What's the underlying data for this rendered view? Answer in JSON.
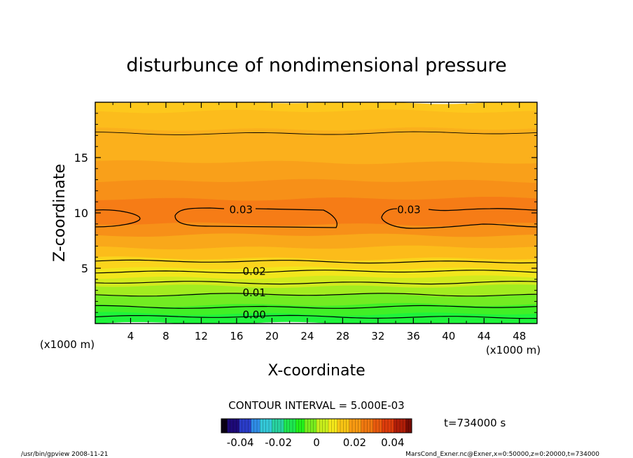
{
  "chart_data": {
    "type": "heatmap",
    "title": "disturbunce of nondimensional pressure",
    "xlabel": "X-coordinate",
    "ylabel": "Z-coordinate",
    "x_unit_left": "(x1000 m)",
    "x_unit_right": "(x1000 m)",
    "xlim": [
      0,
      50
    ],
    "ylim": [
      0,
      20
    ],
    "xticks": [
      4,
      8,
      12,
      16,
      20,
      24,
      28,
      32,
      36,
      40,
      44,
      48
    ],
    "yticks": [
      5,
      10,
      15
    ],
    "grid": false,
    "contour_interval_text": "CONTOUR INTERVAL = 5.000E-03",
    "contour_labels": [
      {
        "text": "0.03",
        "x": 16.5,
        "z": 10.3
      },
      {
        "text": "0.03",
        "x": 35.5,
        "z": 10.3
      },
      {
        "text": "0.02",
        "x": 18.0,
        "z": 4.7
      },
      {
        "text": "0.01",
        "x": 18.0,
        "z": 2.8
      },
      {
        "text": "0.00",
        "x": 18.0,
        "z": 0.8
      }
    ],
    "colorbar": {
      "tick_labels": [
        "-0.04",
        "-0.02",
        "0",
        "0.02",
        "0.04"
      ],
      "tick_values": [
        -0.04,
        -0.02,
        0,
        0.02,
        0.04
      ],
      "range": [
        -0.05,
        0.05
      ],
      "colors": [
        "#0a0014",
        "#1e0a78",
        "#2a3cc8",
        "#2f8ce6",
        "#34c8d8",
        "#28d2a0",
        "#1ee650",
        "#22f01a",
        "#78ec1e",
        "#c8ee1c",
        "#f5e81a",
        "#f8c414",
        "#f89a12",
        "#f07810",
        "#e85a0e",
        "#dc3c0c",
        "#b01e08",
        "#780c04"
      ]
    },
    "fill_levels": [
      {
        "z": 0.0,
        "color": "#1ef43a"
      },
      {
        "z": 0.9,
        "color": "#40f026"
      },
      {
        "z": 1.7,
        "color": "#72ec22"
      },
      {
        "z": 2.6,
        "color": "#a2ec20"
      },
      {
        "z": 3.4,
        "color": "#d2ea1e"
      },
      {
        "z": 4.2,
        "color": "#f2e61c"
      },
      {
        "z": 5.0,
        "color": "#fbd41c"
      },
      {
        "z": 5.9,
        "color": "#fcbc1a"
      },
      {
        "z": 6.9,
        "color": "#f9a81a"
      },
      {
        "z": 8.0,
        "color": "#f79018"
      },
      {
        "z": 9.0,
        "color": "#f67c16"
      },
      {
        "z": 11.3,
        "color": "#f79018"
      },
      {
        "z": 12.9,
        "color": "#f9a01a"
      },
      {
        "z": 14.6,
        "color": "#fbb01c"
      },
      {
        "z": 17.6,
        "color": "#fcbc1c"
      },
      {
        "z": 19.2,
        "color": "#fdc81c"
      }
    ],
    "contour_lines_z": [
      0.6,
      1.5,
      2.6,
      3.7,
      4.7,
      5.6,
      17.2
    ]
  },
  "time_label": "t=734000 s",
  "footer": {
    "left": "/usr/bin/gpview   2008-11-21",
    "right": "MarsCond_Exner.nc@Exner,x=0:50000,z=0:20000,t=734000"
  }
}
